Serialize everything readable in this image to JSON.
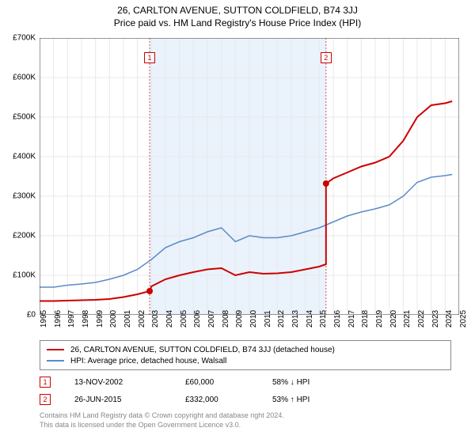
{
  "title": {
    "line1": "26, CARLTON AVENUE, SUTTON COLDFIELD, B74 3JJ",
    "line2": "Price paid vs. HM Land Registry's House Price Index (HPI)"
  },
  "chart": {
    "type": "line",
    "background_color": "#ffffff",
    "grid_color": "#e8e8e8",
    "axis_color": "#333333",
    "shaded_region": {
      "x_start": 2002.87,
      "x_end": 2015.48,
      "fill": "#eaf2fb"
    },
    "event_line_color": "#cc5555",
    "event_line_dash": "2,2",
    "ylim": [
      0,
      700000
    ],
    "ytick_step": 100000,
    "ytick_labels": [
      "£0",
      "£100K",
      "£200K",
      "£300K",
      "£400K",
      "£500K",
      "£600K",
      "£700K"
    ],
    "xlim": [
      1995,
      2025
    ],
    "xtick_step": 1,
    "xtick_labels": [
      "1995",
      "1996",
      "1997",
      "1998",
      "1999",
      "2000",
      "2001",
      "2002",
      "2003",
      "2004",
      "2005",
      "2006",
      "2007",
      "2008",
      "2009",
      "2010",
      "2011",
      "2012",
      "2013",
      "2014",
      "2015",
      "2016",
      "2017",
      "2018",
      "2019",
      "2020",
      "2021",
      "2022",
      "2023",
      "2024",
      "2025"
    ],
    "label_fontsize": 10,
    "series": [
      {
        "name": "price_paid",
        "label": "26, CARLTON AVENUE, SUTTON COLDFIELD, B74 3JJ (detached house)",
        "color": "#cc0000",
        "line_width": 2,
        "markers": [
          {
            "x": 2002.87,
            "y": 60000,
            "label": "1"
          },
          {
            "x": 2015.48,
            "y": 332000,
            "label": "2"
          }
        ],
        "points": [
          [
            1995,
            35000
          ],
          [
            1996,
            35000
          ],
          [
            1997,
            36000
          ],
          [
            1998,
            37000
          ],
          [
            1999,
            38000
          ],
          [
            2000,
            40000
          ],
          [
            2001,
            45000
          ],
          [
            2002,
            52000
          ],
          [
            2002.87,
            60000
          ],
          [
            2003,
            72000
          ],
          [
            2004,
            90000
          ],
          [
            2005,
            100000
          ],
          [
            2006,
            108000
          ],
          [
            2007,
            115000
          ],
          [
            2008,
            118000
          ],
          [
            2009,
            100000
          ],
          [
            2010,
            108000
          ],
          [
            2011,
            104000
          ],
          [
            2012,
            105000
          ],
          [
            2013,
            108000
          ],
          [
            2014,
            115000
          ],
          [
            2015,
            122000
          ],
          [
            2015.48,
            128000
          ],
          [
            2015.48,
            332000
          ],
          [
            2016,
            345000
          ],
          [
            2017,
            360000
          ],
          [
            2018,
            375000
          ],
          [
            2019,
            385000
          ],
          [
            2020,
            400000
          ],
          [
            2021,
            440000
          ],
          [
            2022,
            500000
          ],
          [
            2023,
            530000
          ],
          [
            2024,
            535000
          ],
          [
            2024.5,
            540000
          ]
        ]
      },
      {
        "name": "hpi",
        "label": "HPI: Average price, detached house, Walsall",
        "color": "#5b8bc9",
        "line_width": 1.5,
        "points": [
          [
            1995,
            70000
          ],
          [
            1996,
            70000
          ],
          [
            1997,
            75000
          ],
          [
            1998,
            78000
          ],
          [
            1999,
            82000
          ],
          [
            2000,
            90000
          ],
          [
            2001,
            100000
          ],
          [
            2002,
            115000
          ],
          [
            2003,
            140000
          ],
          [
            2004,
            170000
          ],
          [
            2005,
            185000
          ],
          [
            2006,
            195000
          ],
          [
            2007,
            210000
          ],
          [
            2008,
            220000
          ],
          [
            2009,
            185000
          ],
          [
            2010,
            200000
          ],
          [
            2011,
            195000
          ],
          [
            2012,
            195000
          ],
          [
            2013,
            200000
          ],
          [
            2014,
            210000
          ],
          [
            2015,
            220000
          ],
          [
            2016,
            235000
          ],
          [
            2017,
            250000
          ],
          [
            2018,
            260000
          ],
          [
            2019,
            268000
          ],
          [
            2020,
            278000
          ],
          [
            2021,
            300000
          ],
          [
            2022,
            335000
          ],
          [
            2023,
            348000
          ],
          [
            2024,
            352000
          ],
          [
            2024.5,
            355000
          ]
        ]
      }
    ]
  },
  "legend": {
    "border_color": "#888888",
    "items": [
      {
        "color": "#cc0000",
        "label": "26, CARLTON AVENUE, SUTTON COLDFIELD, B74 3JJ (detached house)"
      },
      {
        "color": "#5b8bc9",
        "label": "HPI: Average price, detached house, Walsall"
      }
    ]
  },
  "events": [
    {
      "num": "1",
      "date": "13-NOV-2002",
      "price": "£60,000",
      "hpi": "58% ↓ HPI"
    },
    {
      "num": "2",
      "date": "26-JUN-2015",
      "price": "£332,000",
      "hpi": "53% ↑ HPI"
    }
  ],
  "footer": {
    "line1": "Contains HM Land Registry data © Crown copyright and database right 2024.",
    "line2": "This data is licensed under the Open Government Licence v3.0."
  }
}
